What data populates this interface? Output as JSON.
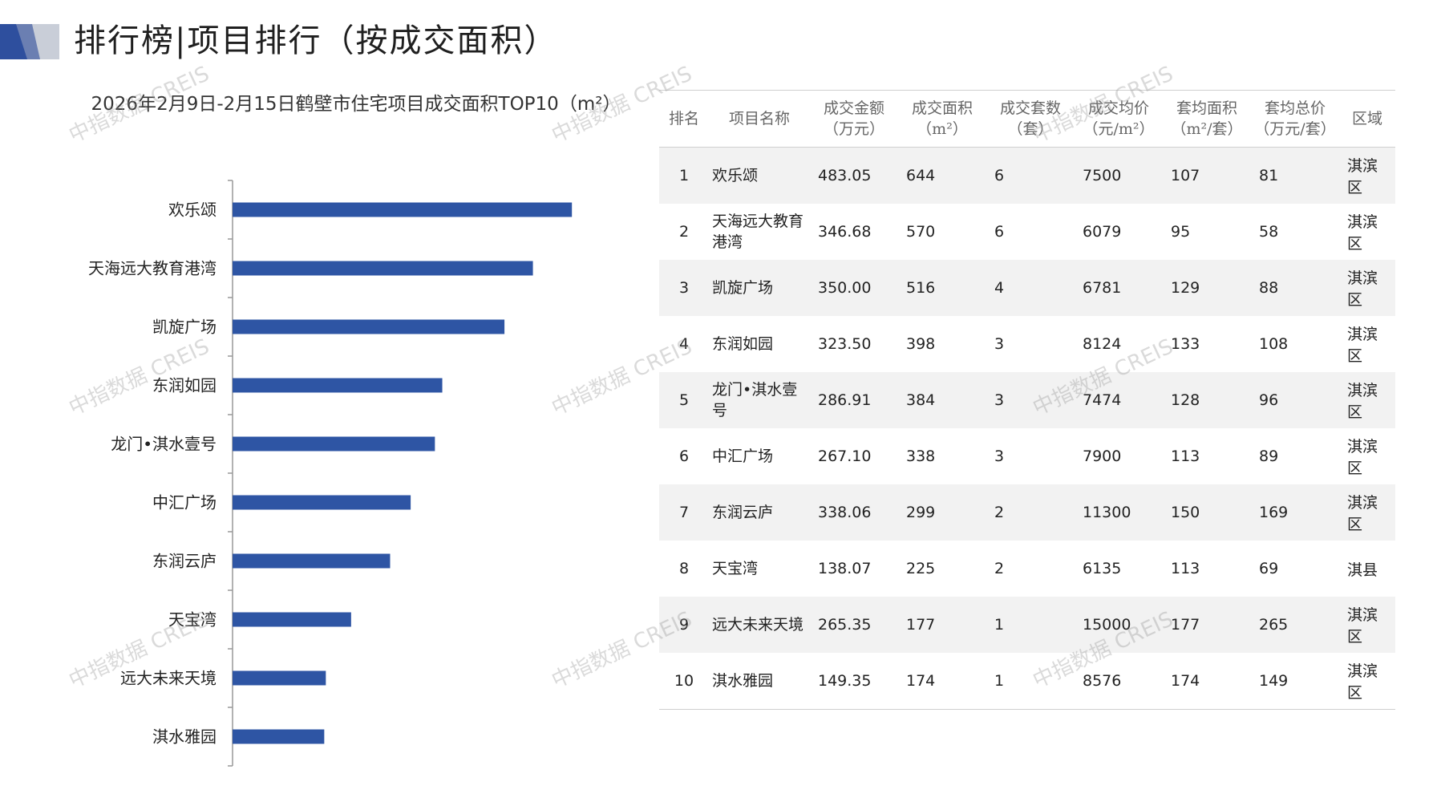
{
  "header": {
    "title": "排行榜|项目排行（按成交面积）"
  },
  "colors": {
    "bar": "#2e55a4",
    "deco_dark": "#2e4f9e",
    "deco_light": "#c9ced8"
  },
  "watermark": "中指数据 CREIS",
  "chart_data": {
    "type": "bar",
    "orientation": "horizontal",
    "title": "2026年2月9日-2月15日鹤壁市住宅项目成交面积TOP10（m²）",
    "categories": [
      "欢乐颂",
      "天海远大教育港湾",
      "凯旋广场",
      "东润如园",
      "龙门•淇水壹号",
      "中汇广场",
      "东润云庐",
      "天宝湾",
      "远大未来天境",
      "淇水雅园"
    ],
    "values": [
      644,
      570,
      516,
      398,
      384,
      338,
      299,
      225,
      177,
      174
    ],
    "xlim": [
      0,
      700
    ],
    "grid": false
  },
  "table": {
    "headers": [
      {
        "l1": "排名",
        "l2": ""
      },
      {
        "l1": "项目名称",
        "l2": ""
      },
      {
        "l1": "成交金额",
        "l2": "（万元）"
      },
      {
        "l1": "成交面积",
        "l2": "（m²）"
      },
      {
        "l1": "成交套数",
        "l2": "（套）"
      },
      {
        "l1": "成交均价",
        "l2": "（元/m²）"
      },
      {
        "l1": "套均面积",
        "l2": "（m²/套）"
      },
      {
        "l1": "套均总价",
        "l2": "（万元/套）"
      },
      {
        "l1": "区域",
        "l2": ""
      }
    ],
    "rows": [
      {
        "rank": "1",
        "name": "欢乐颂",
        "amount": "483.05",
        "area": "644",
        "units": "6",
        "price": "7500",
        "avg_area": "107",
        "avg_total": "81",
        "region": "淇滨区"
      },
      {
        "rank": "2",
        "name": "天海远大教育港湾",
        "amount": "346.68",
        "area": "570",
        "units": "6",
        "price": "6079",
        "avg_area": "95",
        "avg_total": "58",
        "region": "淇滨区"
      },
      {
        "rank": "3",
        "name": "凯旋广场",
        "amount": "350.00",
        "area": "516",
        "units": "4",
        "price": "6781",
        "avg_area": "129",
        "avg_total": "88",
        "region": "淇滨区"
      },
      {
        "rank": "4",
        "name": "东润如园",
        "amount": "323.50",
        "area": "398",
        "units": "3",
        "price": "8124",
        "avg_area": "133",
        "avg_total": "108",
        "region": "淇滨区"
      },
      {
        "rank": "5",
        "name": "龙门•淇水壹号",
        "amount": "286.91",
        "area": "384",
        "units": "3",
        "price": "7474",
        "avg_area": "128",
        "avg_total": "96",
        "region": "淇滨区"
      },
      {
        "rank": "6",
        "name": "中汇广场",
        "amount": "267.10",
        "area": "338",
        "units": "3",
        "price": "7900",
        "avg_area": "113",
        "avg_total": "89",
        "region": "淇滨区"
      },
      {
        "rank": "7",
        "name": "东润云庐",
        "amount": "338.06",
        "area": "299",
        "units": "2",
        "price": "11300",
        "avg_area": "150",
        "avg_total": "169",
        "region": "淇滨区"
      },
      {
        "rank": "8",
        "name": "天宝湾",
        "amount": "138.07",
        "area": "225",
        "units": "2",
        "price": "6135",
        "avg_area": "113",
        "avg_total": "69",
        "region": "淇县"
      },
      {
        "rank": "9",
        "name": "远大未来天境",
        "amount": "265.35",
        "area": "177",
        "units": "1",
        "price": "15000",
        "avg_area": "177",
        "avg_total": "265",
        "region": "淇滨区"
      },
      {
        "rank": "10",
        "name": "淇水雅园",
        "amount": "149.35",
        "area": "174",
        "units": "1",
        "price": "8576",
        "avg_area": "174",
        "avg_total": "149",
        "region": "淇滨区"
      }
    ]
  }
}
